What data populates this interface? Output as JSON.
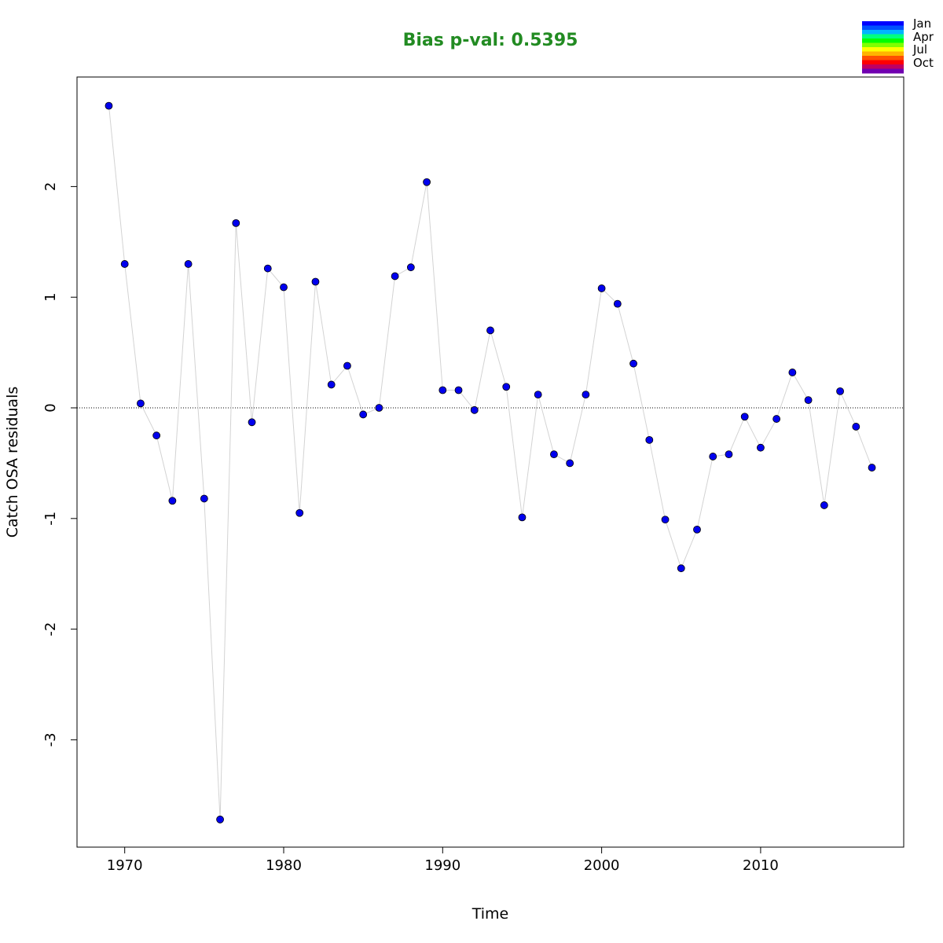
{
  "chart_data": {
    "type": "scatter",
    "title": "Bias p-val: 0.5395",
    "xlabel": "Time",
    "ylabel": "Catch OSA residuals",
    "xlim": [
      1967,
      2019
    ],
    "ylim": [
      -3.97,
      2.99
    ],
    "x_ticks": [
      1970,
      1980,
      1990,
      2000,
      2010
    ],
    "y_ticks": [
      -3,
      -2,
      -1,
      0,
      1,
      2
    ],
    "reference_line_y": 0,
    "grid": false,
    "connecting_line": true,
    "series": [
      {
        "x": [
          1969,
          1970,
          1971,
          1972,
          1973,
          1974,
          1975,
          1976,
          1977,
          1978,
          1979,
          1980,
          1981,
          1982,
          1983,
          1984,
          1985,
          1986,
          1987,
          1988,
          1989,
          1990,
          1991,
          1992,
          1993,
          1994,
          1995,
          1996,
          1997,
          1998,
          1999,
          2000,
          2001,
          2002,
          2003,
          2004,
          2005,
          2006,
          2007,
          2008,
          2009,
          2010,
          2011,
          2012,
          2013,
          2014,
          2015,
          2016,
          2017
        ],
        "values": [
          2.73,
          1.3,
          0.04,
          -0.25,
          -0.84,
          1.3,
          -0.82,
          -3.72,
          1.67,
          -0.13,
          1.26,
          1.09,
          -0.95,
          1.14,
          0.21,
          0.38,
          -0.06,
          0.0,
          1.19,
          1.27,
          2.04,
          0.16,
          0.16,
          -0.02,
          0.7,
          0.19,
          -0.99,
          0.12,
          -0.42,
          -0.5,
          0.12,
          1.08,
          0.94,
          0.4,
          -0.29,
          -1.01,
          -1.45,
          -1.1,
          -0.44,
          -0.42,
          -0.08,
          -0.36,
          -0.1,
          0.32,
          0.07,
          -0.88,
          0.15,
          -0.17,
          -0.54
        ]
      }
    ],
    "point_color": "#0000ee",
    "line_color": "#d3d3d3",
    "title_color": "#228b22",
    "legend": {
      "placement": "top-right",
      "labels": [
        "Jan",
        "Apr",
        "Jul",
        "Oct"
      ],
      "colors": [
        "#0000ff",
        "#0050ff",
        "#00b4ff",
        "#00ff80",
        "#00ff00",
        "#80ff00",
        "#ffff00",
        "#ffb400",
        "#ff5000",
        "#ff0000",
        "#c00060",
        "#7000b0"
      ]
    }
  }
}
